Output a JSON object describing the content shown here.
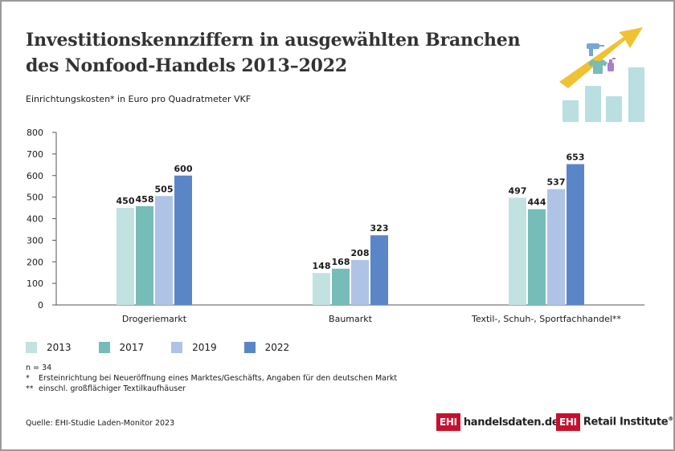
{
  "header": {
    "title_line1": "Investitionskennziffern in ausgewählten Branchen",
    "title_line2": "des Nonfood-Handels 2013–2022",
    "subtitle": "Einrichtungskosten* in Euro pro Quadratmeter VKF"
  },
  "chart_data": {
    "type": "bar",
    "categories": [
      "Drogeriemarkt",
      "Baumarkt",
      "Textil-, Schuh-, Sportfachhandel**"
    ],
    "series": [
      {
        "name": "2013",
        "values": [
          450,
          148,
          497
        ],
        "color": "#c1e2e1"
      },
      {
        "name": "2017",
        "values": [
          458,
          168,
          444
        ],
        "color": "#76bcb8"
      },
      {
        "name": "2019",
        "values": [
          505,
          208,
          537
        ],
        "color": "#aec3e6"
      },
      {
        "name": "2022",
        "values": [
          600,
          323,
          653
        ],
        "color": "#5a86c7"
      }
    ],
    "yticks": [
      0,
      100,
      200,
      300,
      400,
      500,
      600,
      700,
      800
    ],
    "ylim": [
      0,
      800
    ],
    "grid": false,
    "legend_position": "bottom-left"
  },
  "notes": {
    "n": "n = 34",
    "footnote1_mark": "*",
    "footnote1_text": "Ersteinrichtung bei Neueröffnung eines Marktes/Geschäfts, Angaben für den deutschen Markt",
    "footnote2_mark": "**",
    "footnote2_text": "einschl. großflächiger Textilkaufhäuser"
  },
  "source": "Quelle: EHI-Studie Laden-Monitor 2023",
  "logos": {
    "logo1_box": "EHI",
    "logo1_text": "handelsdaten.de",
    "logo2_box": "EHI",
    "logo2_text": "Retail Institute",
    "logo2_mark": "®"
  },
  "icon": {
    "name": "growth-bars-arrow-icon",
    "bar_color": "#b9dfe0",
    "arrow_color": "#f0c232"
  }
}
